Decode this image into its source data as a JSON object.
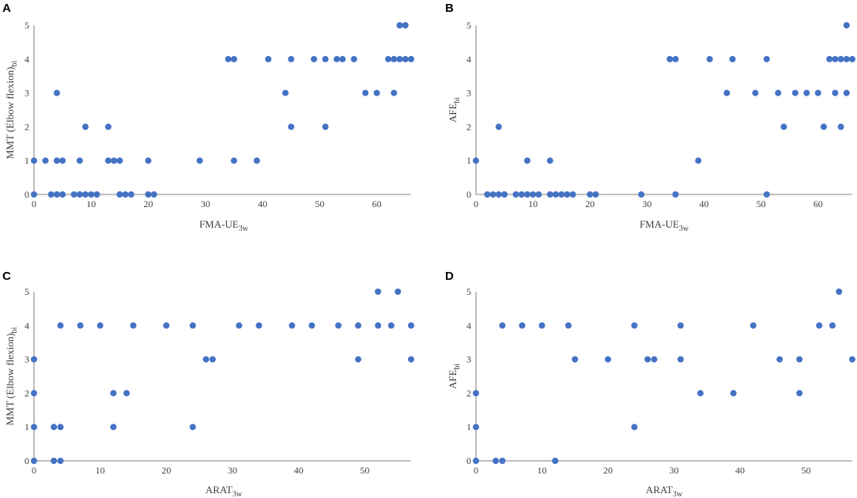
{
  "chart_data": [
    {
      "type": "scatter",
      "panel": "A",
      "xlabel": {
        "main": "FMA-UE",
        "sub": "3w"
      },
      "ylabel": {
        "main": "MMT (Elbow flexion)",
        "sub": "bi"
      },
      "xlim": [
        0,
        66
      ],
      "ylim": [
        0,
        5
      ],
      "xticks": [
        0,
        10,
        20,
        30,
        40,
        50,
        60
      ],
      "yticks": [
        0,
        1,
        2,
        3,
        4,
        5
      ],
      "points": [
        [
          0,
          0
        ],
        [
          0,
          1
        ],
        [
          2,
          1
        ],
        [
          3,
          0
        ],
        [
          4,
          0
        ],
        [
          4,
          1
        ],
        [
          4,
          3
        ],
        [
          5,
          0
        ],
        [
          5,
          1
        ],
        [
          7,
          0
        ],
        [
          8,
          0
        ],
        [
          8,
          1
        ],
        [
          9,
          0
        ],
        [
          9,
          2
        ],
        [
          10,
          0
        ],
        [
          11,
          0
        ],
        [
          13,
          1
        ],
        [
          13,
          2
        ],
        [
          14,
          1
        ],
        [
          15,
          0
        ],
        [
          15,
          1
        ],
        [
          16,
          0
        ],
        [
          17,
          0
        ],
        [
          20,
          0
        ],
        [
          20,
          1
        ],
        [
          21,
          0
        ],
        [
          29,
          1
        ],
        [
          34,
          4
        ],
        [
          35,
          1
        ],
        [
          35,
          4
        ],
        [
          39,
          1
        ],
        [
          41,
          4
        ],
        [
          44,
          3
        ],
        [
          45,
          2
        ],
        [
          45,
          4
        ],
        [
          49,
          4
        ],
        [
          51,
          2
        ],
        [
          51,
          4
        ],
        [
          53,
          4
        ],
        [
          54,
          4
        ],
        [
          56,
          4
        ],
        [
          58,
          3
        ],
        [
          60,
          3
        ],
        [
          62,
          4
        ],
        [
          63,
          3
        ],
        [
          63,
          4
        ],
        [
          64,
          4
        ],
        [
          64,
          5
        ],
        [
          65,
          4
        ],
        [
          65,
          5
        ],
        [
          66,
          4
        ]
      ]
    },
    {
      "type": "scatter",
      "panel": "B",
      "xlabel": {
        "main": "FMA-UE",
        "sub": "3w"
      },
      "ylabel": {
        "main": "AFE",
        "sub": "bi"
      },
      "xlim": [
        0,
        66
      ],
      "ylim": [
        0,
        5
      ],
      "xticks": [
        0,
        10,
        20,
        30,
        40,
        50,
        60
      ],
      "yticks": [
        0,
        1,
        2,
        3,
        4,
        5
      ],
      "points": [
        [
          0,
          1
        ],
        [
          2,
          0
        ],
        [
          3,
          0
        ],
        [
          4,
          0
        ],
        [
          4,
          2
        ],
        [
          5,
          0
        ],
        [
          7,
          0
        ],
        [
          8,
          0
        ],
        [
          9,
          0
        ],
        [
          9,
          1
        ],
        [
          10,
          0
        ],
        [
          11,
          0
        ],
        [
          13,
          0
        ],
        [
          13,
          1
        ],
        [
          14,
          0
        ],
        [
          15,
          0
        ],
        [
          16,
          0
        ],
        [
          17,
          0
        ],
        [
          20,
          0
        ],
        [
          21,
          0
        ],
        [
          29,
          0
        ],
        [
          34,
          4
        ],
        [
          35,
          0
        ],
        [
          35,
          4
        ],
        [
          39,
          1
        ],
        [
          41,
          4
        ],
        [
          44,
          3
        ],
        [
          45,
          4
        ],
        [
          49,
          3
        ],
        [
          51,
          0
        ],
        [
          51,
          4
        ],
        [
          53,
          3
        ],
        [
          54,
          2
        ],
        [
          56,
          3
        ],
        [
          58,
          3
        ],
        [
          60,
          3
        ],
        [
          61,
          2
        ],
        [
          62,
          4
        ],
        [
          63,
          3
        ],
        [
          63,
          4
        ],
        [
          64,
          2
        ],
        [
          64,
          4
        ],
        [
          65,
          3
        ],
        [
          65,
          4
        ],
        [
          65,
          5
        ],
        [
          66,
          4
        ]
      ]
    },
    {
      "type": "scatter",
      "panel": "C",
      "xlabel": {
        "main": "ARAT",
        "sub": "3w"
      },
      "ylabel": {
        "main": "MMT (Elbow flexion)",
        "sub": "bi"
      },
      "xlim": [
        0,
        57
      ],
      "ylim": [
        0,
        5
      ],
      "xticks": [
        0,
        10,
        20,
        30,
        40,
        50
      ],
      "yticks": [
        0,
        1,
        2,
        3,
        4,
        5
      ],
      "points": [
        [
          0,
          0
        ],
        [
          0,
          1
        ],
        [
          0,
          2
        ],
        [
          0,
          3
        ],
        [
          3,
          0
        ],
        [
          3,
          1
        ],
        [
          4,
          0
        ],
        [
          4,
          1
        ],
        [
          4,
          4
        ],
        [
          7,
          4
        ],
        [
          10,
          4
        ],
        [
          12,
          1
        ],
        [
          12,
          2
        ],
        [
          14,
          2
        ],
        [
          15,
          4
        ],
        [
          20,
          4
        ],
        [
          24,
          1
        ],
        [
          24,
          4
        ],
        [
          26,
          3
        ],
        [
          27,
          3
        ],
        [
          31,
          4
        ],
        [
          34,
          4
        ],
        [
          39,
          4
        ],
        [
          42,
          4
        ],
        [
          46,
          4
        ],
        [
          49,
          3
        ],
        [
          49,
          4
        ],
        [
          52,
          4
        ],
        [
          52,
          5
        ],
        [
          54,
          4
        ],
        [
          55,
          5
        ],
        [
          57,
          3
        ],
        [
          57,
          4
        ]
      ]
    },
    {
      "type": "scatter",
      "panel": "D",
      "xlabel": {
        "main": "ARAT",
        "sub": "3w"
      },
      "ylabel": {
        "main": "AFE",
        "sub": "bi"
      },
      "xlim": [
        0,
        57
      ],
      "ylim": [
        0,
        5
      ],
      "xticks": [
        0,
        10,
        20,
        30,
        40,
        50
      ],
      "yticks": [
        0,
        1,
        2,
        3,
        4,
        5
      ],
      "points": [
        [
          0,
          0
        ],
        [
          0,
          1
        ],
        [
          0,
          2
        ],
        [
          3,
          0
        ],
        [
          4,
          0
        ],
        [
          4,
          4
        ],
        [
          7,
          4
        ],
        [
          10,
          4
        ],
        [
          12,
          0
        ],
        [
          14,
          4
        ],
        [
          15,
          3
        ],
        [
          20,
          3
        ],
        [
          24,
          1
        ],
        [
          24,
          4
        ],
        [
          26,
          3
        ],
        [
          27,
          3
        ],
        [
          31,
          3
        ],
        [
          31,
          4
        ],
        [
          34,
          2
        ],
        [
          39,
          2
        ],
        [
          42,
          4
        ],
        [
          46,
          3
        ],
        [
          49,
          2
        ],
        [
          49,
          3
        ],
        [
          52,
          4
        ],
        [
          54,
          4
        ],
        [
          55,
          5
        ],
        [
          57,
          3
        ]
      ]
    }
  ]
}
